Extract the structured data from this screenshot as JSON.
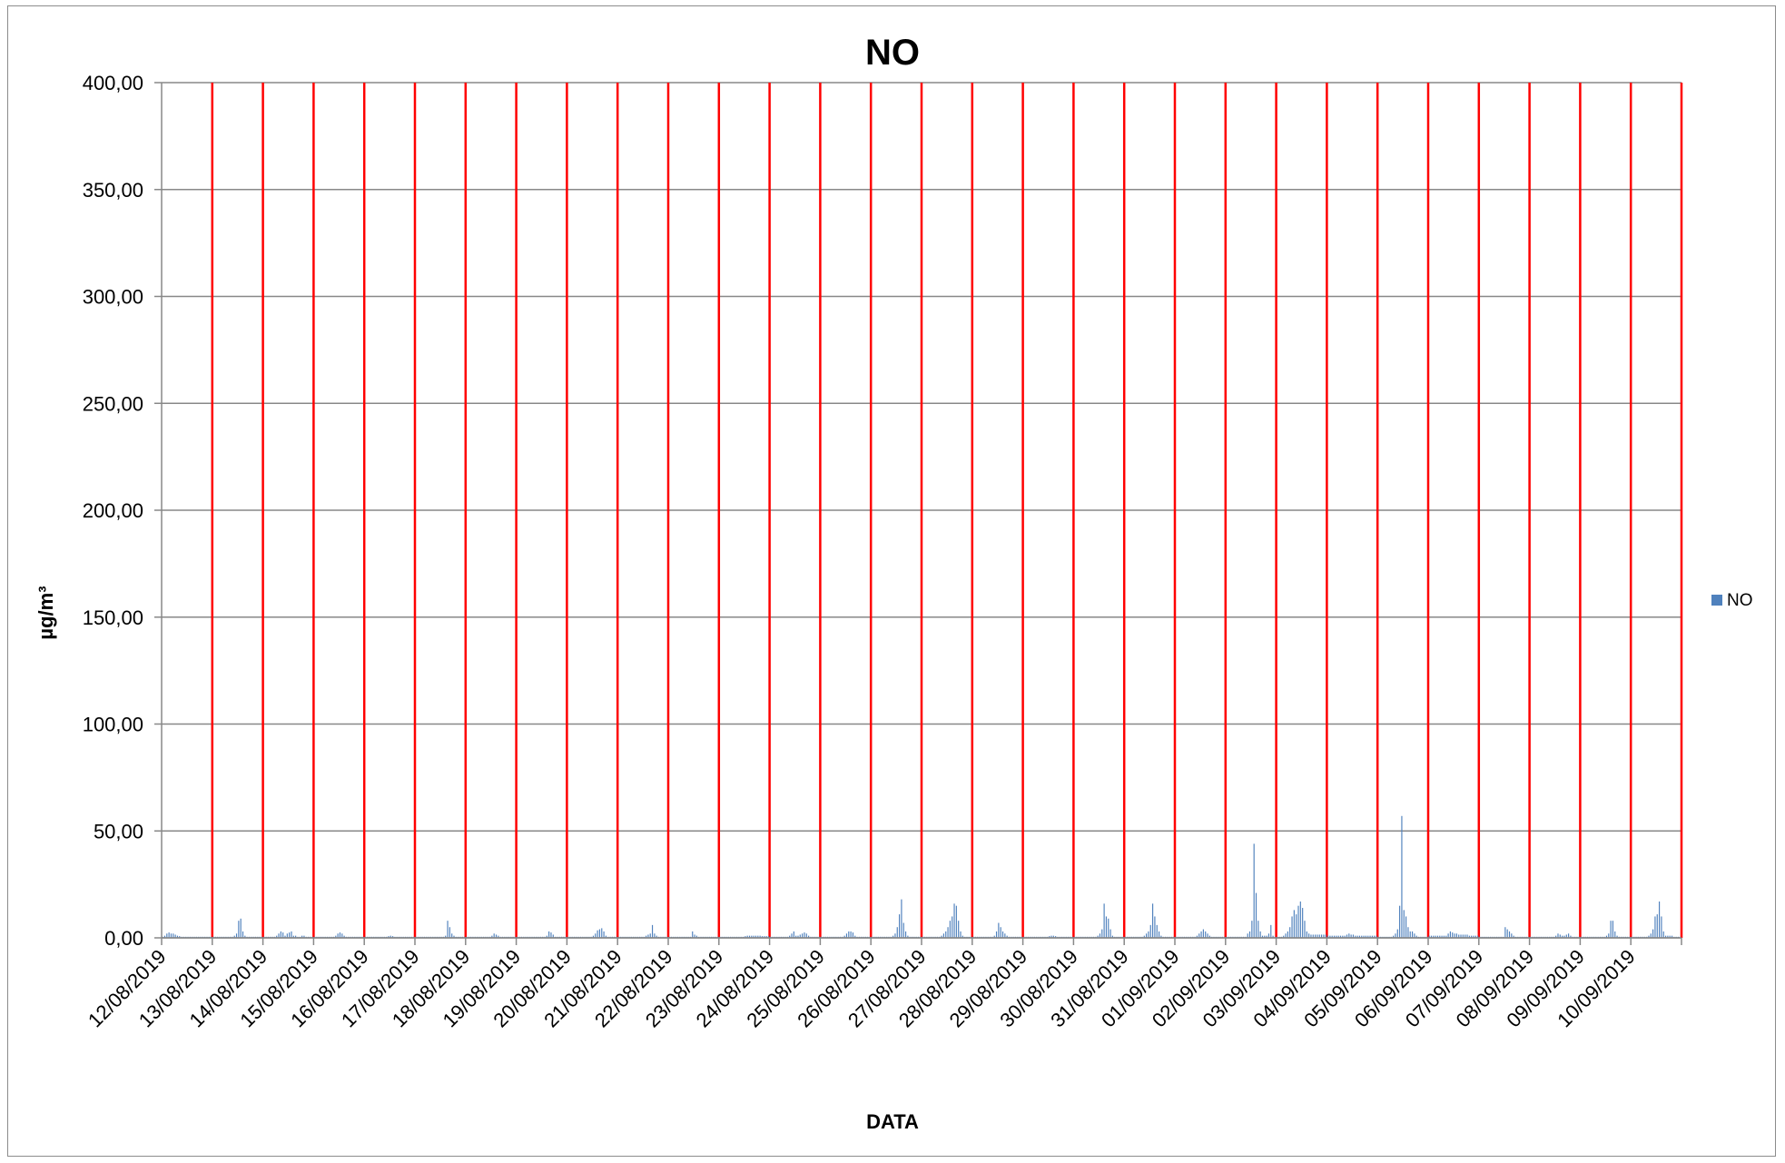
{
  "chart_data": {
    "type": "bar",
    "title": "NO",
    "xlabel": "DATA",
    "ylabel": "µg/m³",
    "ylim": [
      0,
      400
    ],
    "y_ticks": [
      "0,00",
      "50,00",
      "100,00",
      "150,00",
      "200,00",
      "250,00",
      "300,00",
      "350,00",
      "400,00"
    ],
    "y_tick_values": [
      0,
      50,
      100,
      150,
      200,
      250,
      300,
      350,
      400
    ],
    "categories": [
      "12/08/2019",
      "13/08/2019",
      "14/08/2019",
      "15/08/2019",
      "16/08/2019",
      "17/08/2019",
      "18/08/2019",
      "19/08/2019",
      "20/08/2019",
      "21/08/2019",
      "22/08/2019",
      "23/08/2019",
      "24/08/2019",
      "25/08/2019",
      "26/08/2019",
      "27/08/2019",
      "28/08/2019",
      "29/08/2019",
      "30/08/2019",
      "31/08/2019",
      "01/09/2019",
      "02/09/2019",
      "03/09/2019",
      "04/09/2019",
      "05/09/2019",
      "06/09/2019",
      "07/09/2019",
      "08/09/2019",
      "09/09/2019",
      "10/09/2019"
    ],
    "grid": true,
    "day_separators": "red vertical lines at each day boundary",
    "legend": {
      "position": "right",
      "entries": [
        "NO"
      ]
    },
    "colors": {
      "series": "#4f81bd",
      "day_line": "#ff0000",
      "grid": "#888888"
    },
    "series": [
      {
        "name": "NO",
        "daily_hourly_values": [
          [
            0.5,
            1,
            2,
            2.5,
            2,
            2,
            1.5,
            1,
            0.8,
            0.5,
            0.5,
            0.5,
            0.5,
            0.5,
            0.5,
            0.5,
            0.5,
            0.5,
            0.5,
            0.5,
            0.5,
            0.5,
            0.5,
            0.5
          ],
          [
            0.5,
            0.5,
            0.5,
            0.5,
            0.5,
            0.5,
            0.5,
            0.5,
            0.5,
            0.5,
            1,
            2,
            8,
            9,
            3,
            1,
            0.5,
            0.5,
            0.5,
            0.5,
            0.5,
            0.5,
            0.5,
            0.5
          ],
          [
            0.5,
            0.5,
            0.5,
            0.5,
            0.5,
            0.5,
            1,
            2,
            3,
            2.5,
            1,
            2,
            2.5,
            3,
            1,
            1,
            0.5,
            0.5,
            1,
            1,
            0.5,
            0.5,
            0.5,
            0.5
          ],
          [
            0.5,
            0.5,
            0.5,
            0.5,
            0.5,
            0.5,
            0.5,
            0.5,
            0.5,
            0.5,
            1,
            2,
            2.5,
            2,
            1,
            0.5,
            0.5,
            0.5,
            0.5,
            0.5,
            0.5,
            0.5,
            0.5,
            0.5
          ],
          [
            0.5,
            0.5,
            0.5,
            0.5,
            0.5,
            0.5,
            0.5,
            0.5,
            0.5,
            0.5,
            0.5,
            0.8,
            1,
            0.8,
            0.5,
            0.5,
            0.5,
            0.5,
            0.5,
            0.5,
            0.5,
            0.5,
            0.5,
            0.5
          ],
          [
            0.5,
            0.5,
            0.5,
            0.5,
            0.5,
            0.5,
            0.5,
            0.5,
            0.5,
            0.5,
            0.5,
            0.5,
            0.5,
            0.5,
            1,
            8,
            5,
            2,
            1,
            0.5,
            0.5,
            0.5,
            0.5,
            0.5
          ],
          [
            0.5,
            0.5,
            0.5,
            0.5,
            0.5,
            0.5,
            0.5,
            0.5,
            0.5,
            0.5,
            0.5,
            0.5,
            1,
            2,
            1.5,
            1,
            0.5,
            0.5,
            0.5,
            0.5,
            0.5,
            0.5,
            0.5,
            0.5
          ],
          [
            0.5,
            0.5,
            0.5,
            0.5,
            0.5,
            0.5,
            0.5,
            0.5,
            0.5,
            0.5,
            0.5,
            0.5,
            0.5,
            0.5,
            1,
            3,
            2.5,
            1.5,
            0.5,
            0.5,
            0.5,
            0.5,
            0.5,
            0.5
          ],
          [
            0.5,
            0.5,
            0.5,
            0.5,
            0.5,
            0.5,
            0.5,
            0.5,
            0.5,
            0.5,
            0.5,
            0.5,
            1,
            2,
            3.5,
            4,
            4.5,
            3,
            1,
            0.5,
            0.5,
            0.5,
            0.5,
            0.5
          ],
          [
            0.5,
            0.5,
            0.5,
            0.5,
            0.5,
            0.5,
            0.5,
            0.5,
            0.5,
            0.5,
            0.5,
            0.5,
            0.5,
            1,
            1.5,
            2,
            6,
            2,
            1,
            0.5,
            0.5,
            0.5,
            0.5,
            0.5
          ],
          [
            0.5,
            0.5,
            0.5,
            0.5,
            0.5,
            0.5,
            0.5,
            0.5,
            0.5,
            0.5,
            0.5,
            3,
            1.5,
            1,
            0.5,
            0.5,
            0.5,
            0.5,
            0.5,
            0.5,
            0.5,
            0.5,
            0.5,
            0.5
          ],
          [
            0.5,
            0.5,
            0.5,
            0.5,
            0.5,
            0.5,
            0.5,
            0.5,
            0.5,
            0.5,
            0.5,
            0.5,
            0.8,
            1,
            1,
            1,
            1,
            1,
            1,
            1,
            0.8,
            0.8,
            0.8,
            0.8
          ],
          [
            0.5,
            0.5,
            0.5,
            0.5,
            0.5,
            0.5,
            0.5,
            0.5,
            0.5,
            1,
            2,
            3,
            1,
            1,
            1.5,
            2,
            2.5,
            2,
            1,
            0.5,
            0.5,
            0.5,
            0.5,
            0.5
          ],
          [
            0.5,
            0.5,
            0.5,
            0.5,
            0.5,
            0.5,
            0.5,
            0.5,
            0.5,
            0.5,
            0.5,
            1,
            2,
            3,
            3,
            2.5,
            1,
            0.5,
            0.5,
            0.5,
            0.5,
            0.5,
            0.5,
            0.5
          ],
          [
            0.5,
            0.5,
            0.5,
            0.5,
            0.5,
            0.5,
            0.5,
            0.5,
            0.5,
            0.5,
            1,
            2,
            5,
            11,
            18,
            7,
            3,
            1,
            0.5,
            0.5,
            0.5,
            0.5,
            0.5,
            0.5
          ],
          [
            0.5,
            0.5,
            0.5,
            0.5,
            0.5,
            0.5,
            0.5,
            0.5,
            0.5,
            1,
            2,
            3,
            5,
            8,
            10,
            16,
            15,
            8,
            3,
            1,
            0.5,
            0.5,
            0.5,
            0.5
          ],
          [
            0.5,
            0.5,
            0.5,
            0.5,
            0.5,
            0.5,
            0.5,
            0.5,
            0.5,
            0.5,
            1,
            3,
            7,
            5,
            3,
            2,
            1,
            0.5,
            0.5,
            0.5,
            0.5,
            0.5,
            0.5,
            0.5
          ],
          [
            0.5,
            0.5,
            0.5,
            0.5,
            0.5,
            0.5,
            0.5,
            0.5,
            0.5,
            0.5,
            0.5,
            0.5,
            0.8,
            1,
            1,
            0.8,
            0.5,
            0.5,
            0.5,
            0.5,
            0.5,
            0.5,
            0.5,
            0.5
          ],
          [
            0.5,
            0.5,
            0.5,
            0.5,
            0.5,
            0.5,
            0.5,
            0.5,
            0.5,
            0.5,
            0.5,
            1,
            2,
            4,
            16,
            10,
            9,
            4,
            1,
            0.5,
            0.5,
            0.5,
            0.5,
            0.5
          ],
          [
            0.5,
            0.5,
            0.5,
            0.5,
            0.5,
            0.5,
            0.5,
            0.5,
            0.5,
            1,
            2,
            3,
            6,
            16,
            10,
            6,
            3,
            1,
            0.5,
            0.5,
            0.5,
            0.5,
            0.5,
            0.5
          ],
          [
            0.5,
            0.5,
            0.5,
            0.5,
            0.5,
            0.5,
            0.5,
            0.5,
            0.5,
            0.5,
            1,
            2,
            3,
            4,
            3,
            2,
            1,
            0.5,
            0.5,
            0.5,
            0.5,
            0.5,
            0.5,
            0.5
          ],
          [
            0.5,
            0.5,
            0.5,
            0.5,
            0.5,
            0.5,
            0.5,
            0.5,
            0.5,
            0.5,
            2,
            3,
            8,
            44,
            21,
            8,
            3,
            1,
            1,
            1,
            2,
            6,
            1,
            0.5
          ],
          [
            0.5,
            0.5,
            0.5,
            1,
            2,
            3,
            5,
            10,
            13,
            11,
            15,
            17,
            14,
            8,
            3,
            2,
            1.5,
            1.5,
            1.5,
            1.5,
            1.5,
            1.5,
            1.5,
            1.5
          ],
          [
            1,
            1,
            1,
            1,
            1,
            1,
            1,
            1,
            1,
            1.5,
            2,
            1.5,
            1.5,
            1,
            1,
            1,
            1,
            1,
            1,
            1,
            1,
            1,
            1,
            1
          ],
          [
            0.5,
            0.5,
            0.5,
            0.5,
            0.5,
            0.5,
            0.5,
            1,
            2,
            4,
            15,
            57,
            13,
            10,
            5,
            3,
            3,
            2,
            1,
            0.5,
            0.5,
            0.5,
            0.5,
            0.5
          ],
          [
            1,
            1,
            1,
            1,
            1,
            1,
            1,
            1,
            1,
            2,
            3,
            2.5,
            2,
            2,
            1.5,
            1.5,
            1.5,
            1.5,
            1.5,
            1,
            1,
            1,
            1,
            1
          ],
          [
            0.5,
            0.5,
            0.5,
            0.5,
            0.5,
            0.5,
            0.5,
            0.5,
            0.5,
            0.5,
            0.5,
            0.5,
            5,
            4,
            3,
            2,
            1,
            0.5,
            0.5,
            0.5,
            0.5,
            0.5,
            0.5,
            0.5
          ],
          [
            0.5,
            0.5,
            0.5,
            0.5,
            0.5,
            0.5,
            0.5,
            0.5,
            0.5,
            0.5,
            0.5,
            0.5,
            1,
            2,
            1.5,
            1,
            1,
            1.5,
            2,
            1,
            0.5,
            0.5,
            0.5,
            0.5
          ],
          [
            0.5,
            0.5,
            0.5,
            0.5,
            0.5,
            0.5,
            0.5,
            0.5,
            0.5,
            0.5,
            0.5,
            0.5,
            1,
            2,
            8,
            8,
            3,
            1,
            0.5,
            0.5,
            0.5,
            0.5,
            0.5,
            0.5
          ],
          [
            0.5,
            0.5,
            0.5,
            0.5,
            0.5,
            0.5,
            0.5,
            0.5,
            1,
            2,
            4,
            10,
            11,
            17,
            10,
            3,
            1,
            1,
            1,
            1,
            0.5,
            0.5,
            0.5,
            0.5
          ]
        ]
      }
    ]
  }
}
